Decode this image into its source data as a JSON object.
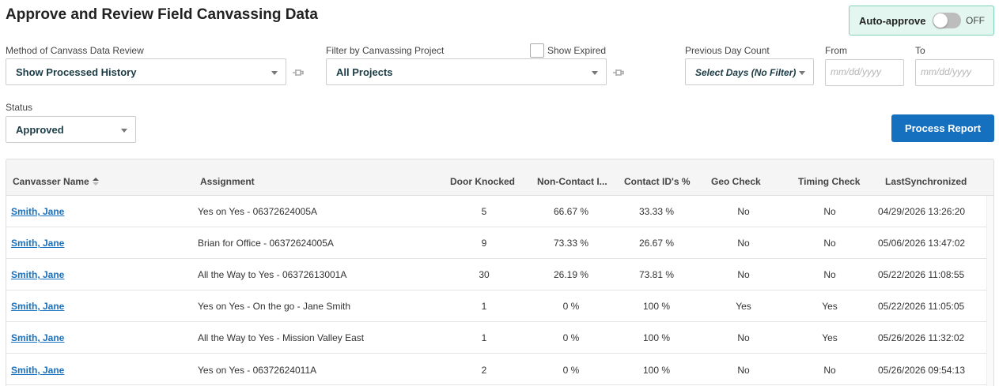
{
  "page": {
    "title": "Approve and Review Field Canvassing Data"
  },
  "auto_approve": {
    "label": "Auto-approve",
    "state": "OFF",
    "enabled": false
  },
  "filters": {
    "method": {
      "label": "Method of Canvass Data Review",
      "value": "Show Processed History"
    },
    "project": {
      "label": "Filter by Canvassing Project",
      "value": "All Projects"
    },
    "show_expired": {
      "label": "Show Expired",
      "checked": false
    },
    "previous_day": {
      "label": "Previous Day Count",
      "value": "Select Days (No Filter)"
    },
    "from": {
      "label": "From",
      "placeholder": "mm/dd/yyyy"
    },
    "to": {
      "label": "To",
      "placeholder": "mm/dd/yyyy"
    },
    "status": {
      "label": "Status",
      "value": "Approved"
    }
  },
  "process_button": {
    "label": "Process Report"
  },
  "table": {
    "columns": [
      "Canvasser Name",
      "Assignment",
      "Door Knocked",
      "Non-Contact I...",
      "Contact ID's %",
      "Geo Check",
      "Timing Check",
      "LastSynchronized"
    ],
    "rows": [
      {
        "name": "Smith, Jane",
        "assignment": "Yes on Yes - 06372624005A",
        "doors": "5",
        "non_contact": "66.67 %",
        "contact": "33.33 %",
        "geo": "No",
        "timing": "No",
        "synced": "04/29/2026 13:26:20"
      },
      {
        "name": "Smith, Jane",
        "assignment": "Brian for Office - 06372624005A",
        "doors": "9",
        "non_contact": "73.33 %",
        "contact": "26.67 %",
        "geo": "No",
        "timing": "No",
        "synced": "05/06/2026 13:47:02"
      },
      {
        "name": "Smith, Jane",
        "assignment": "All the Way to Yes - 06372613001A",
        "doors": "30",
        "non_contact": "26.19 %",
        "contact": "73.81 %",
        "geo": "No",
        "timing": "No",
        "synced": "05/22/2026 11:08:55"
      },
      {
        "name": "Smith, Jane",
        "assignment": "Yes on Yes - On the go - Jane Smith",
        "doors": "1",
        "non_contact": "0 %",
        "contact": "100 %",
        "geo": "Yes",
        "timing": "Yes",
        "synced": "05/22/2026 11:05:05"
      },
      {
        "name": "Smith, Jane",
        "assignment": "All the Way to Yes - Mission Valley East",
        "doors": "1",
        "non_contact": "0 %",
        "contact": "100 %",
        "geo": "No",
        "timing": "Yes",
        "synced": "05/26/2026 11:32:02"
      },
      {
        "name": "Smith, Jane",
        "assignment": "Yes on Yes - 06372624011A",
        "doors": "2",
        "non_contact": "0 %",
        "contact": "100 %",
        "geo": "No",
        "timing": "No",
        "synced": "05/26/2026 09:54:13"
      }
    ]
  },
  "colors": {
    "accent": "#1670c0",
    "toggle_bg": "#e3f7f0",
    "toggle_border": "#7fd1b9"
  },
  "icons": {
    "pin": "pin-icon",
    "sort": "sort-icon",
    "dropdown": "chevron-down-icon"
  }
}
